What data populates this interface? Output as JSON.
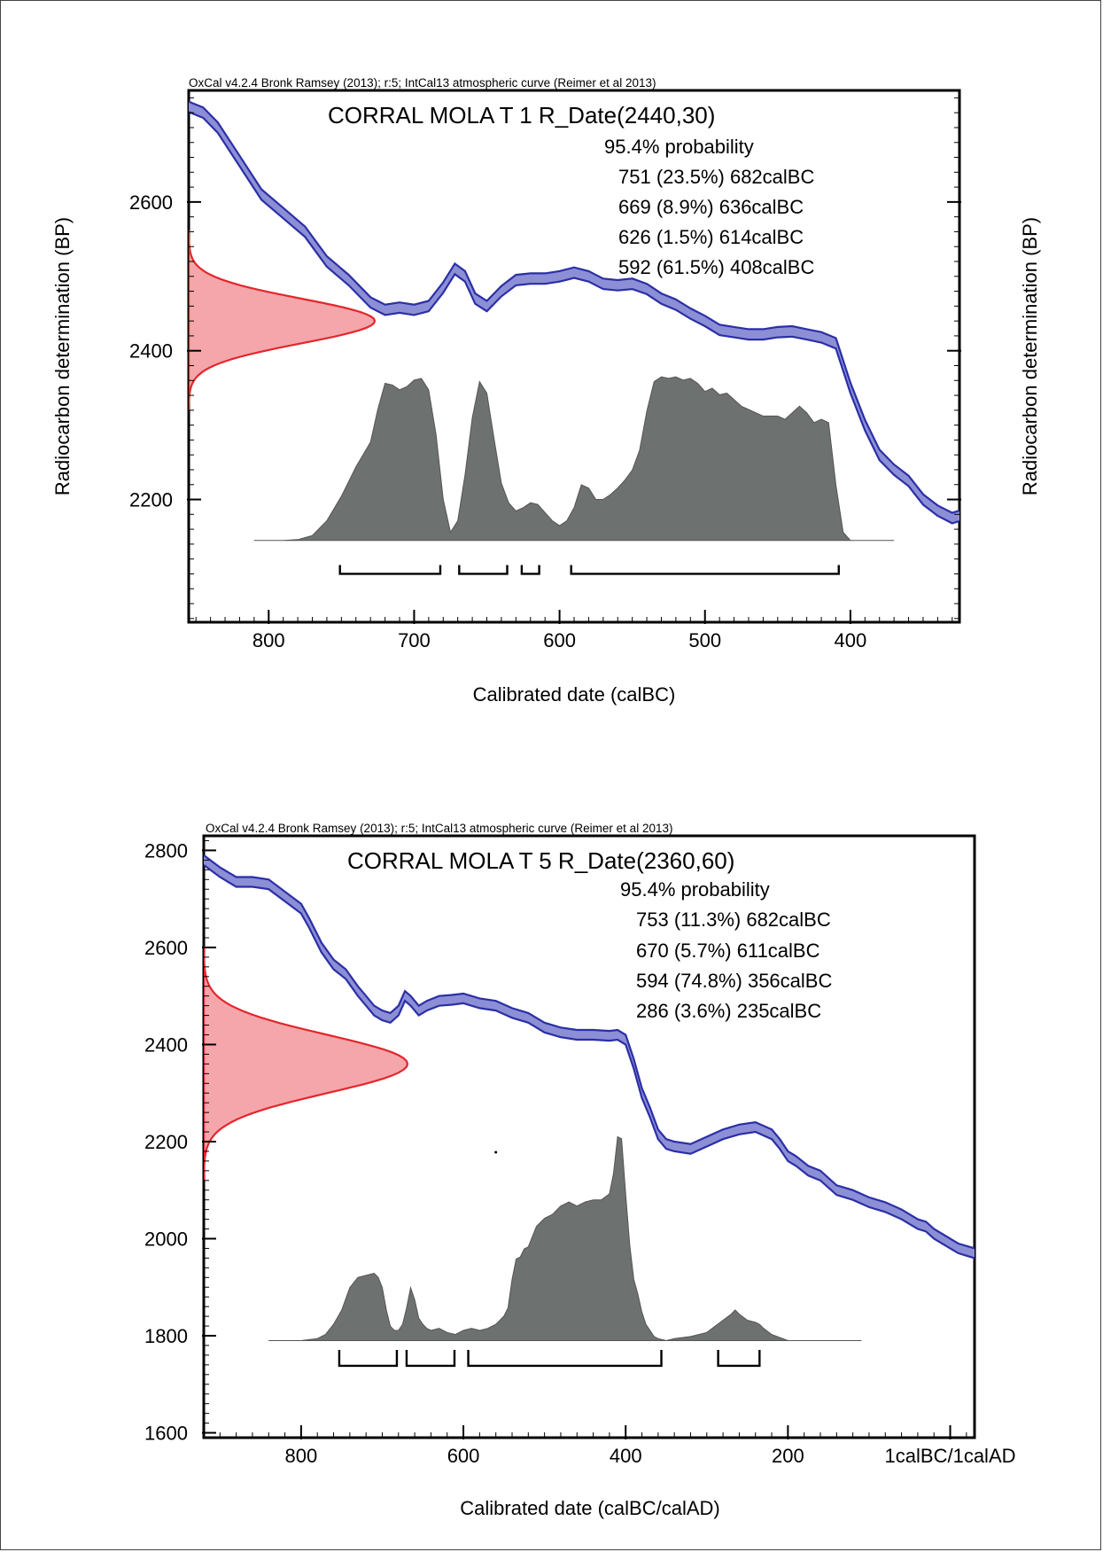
{
  "chart_data": [
    {
      "type": "area",
      "header": "OxCal v4.2.4 Bronk Ramsey (2013); r:5; IntCal13 atmospheric curve (Reimer et al 2013)",
      "title": "CORRAL MOLA T 1 R_Date(2440,30)",
      "probability_label": "95.4% probability",
      "ranges": [
        {
          "text": "751 (23.5%) 682calBC",
          "from": 751,
          "to": 682,
          "percent": 23.5
        },
        {
          "text": "669 (8.9%) 636calBC",
          "from": 669,
          "to": 636,
          "percent": 8.9
        },
        {
          "text": "626 (1.5%) 614calBC",
          "from": 626,
          "to": 614,
          "percent": 1.5
        },
        {
          "text": "592 (61.5%) 408calBC",
          "from": 592,
          "to": 408,
          "percent": 61.5
        }
      ],
      "xlabel": "Calibrated date (calBC)",
      "ylabel": "Radiocarbon determination (BP)",
      "ylabel_right": "Radiocarbon determination (BP)",
      "xlim": [
        855,
        325
      ],
      "ylim": [
        2035,
        2750
      ],
      "x_ticks": [
        {
          "value": 800,
          "label": "800"
        },
        {
          "value": 700,
          "label": "700"
        },
        {
          "value": 600,
          "label": "600"
        },
        {
          "value": 500,
          "label": "500"
        },
        {
          "value": 400,
          "label": "400"
        }
      ],
      "y_ticks": [
        {
          "value": 2600,
          "label": "2600"
        },
        {
          "value": 2400,
          "label": "2400"
        },
        {
          "value": 2200,
          "label": "2200"
        }
      ],
      "measurement": {
        "mean": 2440,
        "sigma": 30
      },
      "calibration_curve": {
        "x": [
          855,
          845,
          835,
          820,
          805,
          790,
          775,
          760,
          745,
          730,
          720,
          710,
          700,
          690,
          680,
          672,
          665,
          658,
          650,
          640,
          630,
          620,
          610,
          600,
          590,
          580,
          570,
          560,
          550,
          540,
          530,
          520,
          510,
          500,
          490,
          480,
          470,
          460,
          450,
          440,
          430,
          420,
          410,
          400,
          390,
          380,
          370,
          360,
          350,
          340,
          330,
          325
        ],
        "y": [
          2728,
          2720,
          2700,
          2655,
          2610,
          2585,
          2560,
          2520,
          2495,
          2465,
          2455,
          2458,
          2455,
          2460,
          2485,
          2510,
          2500,
          2470,
          2460,
          2480,
          2495,
          2497,
          2497,
          2500,
          2505,
          2500,
          2490,
          2488,
          2490,
          2483,
          2470,
          2462,
          2450,
          2440,
          2428,
          2425,
          2422,
          2422,
          2425,
          2426,
          2422,
          2418,
          2410,
          2350,
          2300,
          2260,
          2240,
          2225,
          2200,
          2185,
          2175,
          2178
        ],
        "width": 14
      },
      "posterior": {
        "x": [
          810,
          790,
          780,
          770,
          760,
          750,
          740,
          730,
          725,
          720,
          715,
          710,
          705,
          700,
          695,
          690,
          685,
          680,
          675,
          670,
          665,
          660,
          655,
          650,
          645,
          640,
          635,
          630,
          625,
          620,
          615,
          610,
          605,
          600,
          595,
          590,
          585,
          580,
          575,
          570,
          565,
          560,
          555,
          550,
          545,
          540,
          535,
          530,
          525,
          520,
          515,
          510,
          505,
          500,
          495,
          490,
          485,
          480,
          475,
          470,
          465,
          460,
          455,
          450,
          445,
          440,
          435,
          430,
          425,
          420,
          415,
          410,
          405,
          400,
          390,
          370
        ],
        "y": [
          0,
          0,
          0.005,
          0.03,
          0.12,
          0.27,
          0.45,
          0.6,
          0.8,
          0.96,
          0.95,
          0.92,
          0.94,
          0.98,
          0.99,
          0.92,
          0.65,
          0.25,
          0.05,
          0.12,
          0.4,
          0.75,
          0.97,
          0.9,
          0.62,
          0.35,
          0.23,
          0.18,
          0.2,
          0.23,
          0.22,
          0.17,
          0.12,
          0.09,
          0.12,
          0.2,
          0.34,
          0.32,
          0.25,
          0.25,
          0.28,
          0.32,
          0.37,
          0.43,
          0.55,
          0.79,
          0.97,
          1.0,
          0.99,
          1.0,
          0.98,
          0.99,
          0.96,
          0.91,
          0.93,
          0.89,
          0.9,
          0.86,
          0.82,
          0.8,
          0.78,
          0.76,
          0.76,
          0.76,
          0.74,
          0.78,
          0.82,
          0.78,
          0.72,
          0.74,
          0.72,
          0.34,
          0.05,
          0,
          0,
          0
        ]
      }
    },
    {
      "type": "area",
      "header": "OxCal v4.2.4 Bronk Ramsey (2013); r:5; IntCal13 atmospheric curve (Reimer et al 2013)",
      "title": "CORRAL MOLA T 5 R_Date(2360,60)",
      "probability_label": "95.4% probability",
      "ranges": [
        {
          "text": "753 (11.3%) 682calBC",
          "from": 753,
          "to": 682,
          "percent": 11.3
        },
        {
          "text": "670 (5.7%) 611calBC",
          "from": 670,
          "to": 611,
          "percent": 5.7
        },
        {
          "text": "594 (74.8%) 356calBC",
          "from": 594,
          "to": 356,
          "percent": 74.8
        },
        {
          "text": "286 (3.6%) 235calBC",
          "from": 286,
          "to": 235,
          "percent": 3.6
        }
      ],
      "xlabel": "Calibrated date (calBC/calAD)",
      "ylabel": "",
      "xlim": [
        920,
        -30
      ],
      "ylim": [
        1590,
        2830
      ],
      "x_ticks": [
        {
          "value": 800,
          "label": "800"
        },
        {
          "value": 600,
          "label": "600"
        },
        {
          "value": 400,
          "label": "400"
        },
        {
          "value": 200,
          "label": "200"
        },
        {
          "value": 0,
          "label": "1calBC/1calAD"
        }
      ],
      "y_ticks": [
        {
          "value": 2800,
          "label": "2800"
        },
        {
          "value": 2600,
          "label": "2600"
        },
        {
          "value": 2400,
          "label": "2400"
        },
        {
          "value": 2200,
          "label": "2200"
        },
        {
          "value": 2000,
          "label": "2000"
        },
        {
          "value": 1800,
          "label": "1800"
        },
        {
          "value": 1600,
          "label": "1600"
        }
      ],
      "measurement": {
        "mean": 2360,
        "sigma": 60
      },
      "calibration_curve": {
        "x": [
          920,
          900,
          880,
          860,
          840,
          820,
          800,
          790,
          775,
          760,
          745,
          730,
          720,
          710,
          700,
          690,
          680,
          672,
          665,
          655,
          645,
          630,
          615,
          600,
          580,
          560,
          540,
          520,
          500,
          480,
          460,
          440,
          420,
          410,
          400,
          390,
          380,
          370,
          360,
          350,
          340,
          320,
          300,
          280,
          260,
          240,
          220,
          210,
          200,
          190,
          175,
          160,
          140,
          120,
          100,
          80,
          60,
          50,
          40,
          30,
          20,
          10,
          0,
          -10,
          -20,
          -30
        ],
        "y": [
          2780,
          2755,
          2735,
          2735,
          2730,
          2705,
          2680,
          2650,
          2600,
          2565,
          2545,
          2510,
          2490,
          2470,
          2460,
          2455,
          2470,
          2500,
          2490,
          2470,
          2480,
          2490,
          2492,
          2495,
          2485,
          2480,
          2465,
          2455,
          2435,
          2425,
          2420,
          2420,
          2418,
          2420,
          2410,
          2360,
          2300,
          2260,
          2215,
          2195,
          2190,
          2185,
          2200,
          2215,
          2225,
          2230,
          2215,
          2195,
          2170,
          2160,
          2140,
          2130,
          2100,
          2090,
          2075,
          2065,
          2050,
          2040,
          2030,
          2025,
          2010,
          2000,
          1990,
          1980,
          1975,
          1970
        ],
        "width": 20
      },
      "posterior": {
        "x": [
          840,
          800,
          780,
          770,
          760,
          750,
          740,
          730,
          720,
          710,
          705,
          700,
          695,
          690,
          685,
          680,
          675,
          670,
          665,
          660,
          655,
          650,
          645,
          640,
          630,
          620,
          610,
          600,
          590,
          580,
          570,
          560,
          550,
          545,
          540,
          535,
          530,
          525,
          520,
          510,
          500,
          490,
          480,
          470,
          460,
          450,
          440,
          430,
          420,
          415,
          410,
          405,
          400,
          395,
          390,
          385,
          380,
          375,
          370,
          365,
          360,
          350,
          340,
          320,
          300,
          290,
          280,
          270,
          265,
          260,
          250,
          240,
          235,
          230,
          220,
          200,
          110
        ],
        "y": [
          0,
          0,
          0.01,
          0.03,
          0.08,
          0.15,
          0.26,
          0.31,
          0.32,
          0.33,
          0.31,
          0.26,
          0.15,
          0.07,
          0.05,
          0.05,
          0.08,
          0.16,
          0.26,
          0.2,
          0.11,
          0.08,
          0.06,
          0.05,
          0.06,
          0.04,
          0.03,
          0.05,
          0.06,
          0.05,
          0.06,
          0.08,
          0.12,
          0.16,
          0.3,
          0.4,
          0.41,
          0.45,
          0.46,
          0.56,
          0.6,
          0.62,
          0.66,
          0.68,
          0.66,
          0.68,
          0.69,
          0.69,
          0.72,
          0.82,
          1.0,
          0.99,
          0.72,
          0.47,
          0.3,
          0.23,
          0.14,
          0.08,
          0.05,
          0.02,
          0.01,
          0,
          0.01,
          0.02,
          0.04,
          0.07,
          0.1,
          0.13,
          0.15,
          0.13,
          0.1,
          0.09,
          0.08,
          0.06,
          0.03,
          0,
          0
        ]
      }
    }
  ]
}
